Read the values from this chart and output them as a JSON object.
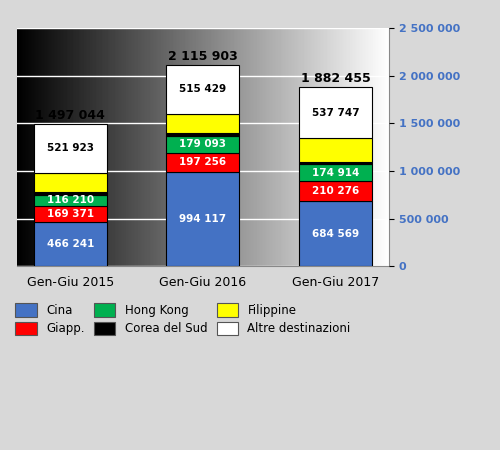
{
  "categories": [
    "Gen-Giu 2015",
    "Gen-Giu 2016",
    "Gen-Giu 2017"
  ],
  "total_labels": [
    "1 497 044",
    "2 115 903",
    "1 882 455"
  ],
  "total_vals": [
    1497044,
    2115903,
    1882455
  ],
  "series_order": [
    "Cina",
    "Giapp.",
    "Hong Kong",
    "Corea del Sud",
    "Filippine",
    "Altre destinazioni"
  ],
  "exact_values": {
    "Cina": [
      466241,
      994117,
      684569
    ],
    "Giapp.": [
      169371,
      197256,
      210276
    ],
    "Hong Kong": [
      116210,
      179093,
      174914
    ],
    "Corea del Sud": [
      23299,
      30008,
      25000
    ],
    "Filippine": [
      200000,
      200000,
      249949
    ],
    "Altre destinazioni": [
      521923,
      515429,
      537747
    ]
  },
  "colors": {
    "Cina": "#4472C4",
    "Giapp.": "#FF0000",
    "Hong Kong": "#00B050",
    "Corea del Sud": "#000000",
    "Filippine": "#FFFF00",
    "Altre destinazioni": "#FFFFFF"
  },
  "label_show": {
    "Cina": true,
    "Giapp.": true,
    "Hong Kong": true,
    "Corea del Sud": false,
    "Filippine": false,
    "Altre destinazioni": true
  },
  "label_text_colors": {
    "Cina": "#FFFFFF",
    "Giapp.": "#FFFFFF",
    "Hong Kong": "#FFFFFF",
    "Corea del Sud": "#FFFFFF",
    "Filippine": "#000000",
    "Altre destinazioni": "#000000"
  },
  "bar_edge_color": "#000000",
  "bar_width": 0.55,
  "ylim": [
    0,
    2500000
  ],
  "yticks": [
    0,
    500000,
    1000000,
    1500000,
    2000000,
    2500000
  ],
  "ytick_labels": [
    "0",
    "500 000",
    "1 000 000",
    "1 500 000",
    "2 000 000",
    "2 500 000"
  ],
  "bg_color_left": "#C8C8C8",
  "bg_color_right": "#F0F0F0",
  "plot_bg_left": "#D0D0D0",
  "plot_bg_right": "#FFFFFF",
  "grid_color": "#FFFFFF",
  "axis_color": "#4472C4",
  "figsize": [
    5.0,
    4.5
  ],
  "dpi": 100
}
